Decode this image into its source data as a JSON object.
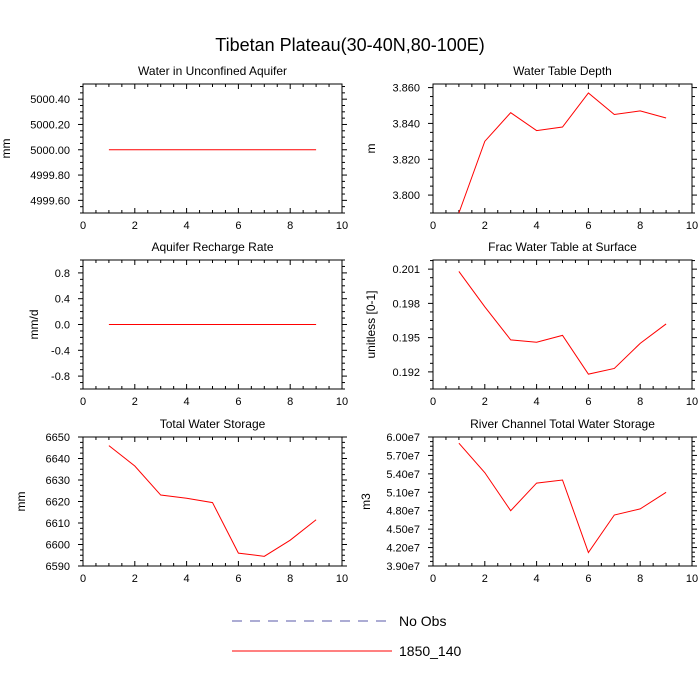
{
  "title": "Tibetan Plateau(30-40N,80-100E)",
  "colors": {
    "obs": "#5a5aaa",
    "model": "#ff0000",
    "axis": "#000000"
  },
  "legend": [
    {
      "label": "No Obs",
      "style": "dashed",
      "color": "#5a5aaa"
    },
    {
      "label": "1850_140",
      "style": "solid",
      "color": "#ff0000"
    }
  ],
  "chart_data": [
    {
      "type": "line",
      "title": "Water in Unconfined Aquifer",
      "ylabel": "mm",
      "xlabel": "",
      "xlim": [
        0,
        10
      ],
      "ylim": [
        4999.5,
        5000.52
      ],
      "xticks": [
        0,
        2,
        4,
        6,
        8,
        10
      ],
      "xtick_labels": [
        "0",
        "2",
        "4",
        "6",
        "8",
        "10"
      ],
      "yticks": [
        4999.6,
        4999.8,
        5000.0,
        5000.2,
        5000.4
      ],
      "ytick_labels": [
        "4999.60",
        "4999.80",
        "5000.00",
        "5000.20",
        "5000.40"
      ],
      "series": [
        {
          "name": "1850_140",
          "x": [
            1,
            2,
            3,
            4,
            5,
            6,
            7,
            8,
            9
          ],
          "values": [
            5000,
            5000,
            5000,
            5000,
            5000,
            5000,
            5000,
            5000,
            5000
          ]
        }
      ]
    },
    {
      "type": "line",
      "title": "Water Table Depth",
      "ylabel": "m",
      "xlabel": "",
      "xlim": [
        0,
        10
      ],
      "ylim": [
        3.79,
        3.862
      ],
      "xticks": [
        0,
        2,
        4,
        6,
        8,
        10
      ],
      "xtick_labels": [
        "0",
        "2",
        "4",
        "6",
        "8",
        "10"
      ],
      "yticks": [
        3.8,
        3.82,
        3.84,
        3.86
      ],
      "ytick_labels": [
        "3.800",
        "3.820",
        "3.840",
        "3.860"
      ],
      "series": [
        {
          "name": "1850_140",
          "x": [
            1,
            2,
            3,
            4,
            5,
            6,
            7,
            8,
            9
          ],
          "values": [
            3.79,
            3.83,
            3.846,
            3.836,
            3.838,
            3.857,
            3.845,
            3.847,
            3.843
          ]
        }
      ]
    },
    {
      "type": "line",
      "title": "Aquifer Recharge Rate",
      "ylabel": "mm/d",
      "xlabel": "",
      "xlim": [
        0,
        10
      ],
      "ylim": [
        -1.0,
        1.0
      ],
      "xticks": [
        0,
        2,
        4,
        6,
        8,
        10
      ],
      "xtick_labels": [
        "0",
        "2",
        "4",
        "6",
        "8",
        "10"
      ],
      "yticks": [
        -0.8,
        -0.4,
        0.0,
        0.4,
        0.8
      ],
      "ytick_labels": [
        "-0.8",
        "-0.4",
        "0.0",
        "0.4",
        "0.8"
      ],
      "series": [
        {
          "name": "1850_140",
          "x": [
            1,
            2,
            3,
            4,
            5,
            6,
            7,
            8,
            9
          ],
          "values": [
            0,
            0,
            0,
            0,
            0,
            0,
            0,
            0,
            0
          ]
        }
      ]
    },
    {
      "type": "line",
      "title": "Frac Water Table at Surface",
      "ylabel": "unitless [0-1]",
      "xlabel": "",
      "xlim": [
        0,
        10
      ],
      "ylim": [
        0.1905,
        0.2018
      ],
      "xticks": [
        0,
        2,
        4,
        6,
        8,
        10
      ],
      "xtick_labels": [
        "0",
        "2",
        "4",
        "6",
        "8",
        "10"
      ],
      "yticks": [
        0.192,
        0.195,
        0.198,
        0.201
      ],
      "ytick_labels": [
        "0.192",
        "0.195",
        "0.198",
        "0.201"
      ],
      "series": [
        {
          "name": "1850_140",
          "x": [
            1,
            2,
            3,
            4,
            5,
            6,
            7,
            8,
            9
          ],
          "values": [
            0.2008,
            0.1977,
            0.1948,
            0.1946,
            0.1952,
            0.1918,
            0.1923,
            0.1945,
            0.1962
          ]
        }
      ]
    },
    {
      "type": "line",
      "title": "Total Water Storage",
      "ylabel": "mm",
      "xlabel": "",
      "xlim": [
        0,
        10
      ],
      "ylim": [
        6590,
        6650
      ],
      "xticks": [
        0,
        2,
        4,
        6,
        8,
        10
      ],
      "xtick_labels": [
        "0",
        "2",
        "4",
        "6",
        "8",
        "10"
      ],
      "yticks": [
        6590,
        6600,
        6610,
        6620,
        6630,
        6640,
        6650
      ],
      "ytick_labels": [
        "6590",
        "6600",
        "6610",
        "6620",
        "6630",
        "6640",
        "6650"
      ],
      "series": [
        {
          "name": "1850_140",
          "x": [
            1,
            2,
            3,
            4,
            5,
            6,
            7,
            8,
            9
          ],
          "values": [
            6646,
            6636.5,
            6623,
            6621.5,
            6619.5,
            6596,
            6594.5,
            6602,
            6611.5
          ]
        }
      ]
    },
    {
      "type": "line",
      "title": "River Channel Total Water Storage",
      "ylabel": "m3",
      "xlabel": "",
      "xlim": [
        0,
        10
      ],
      "ylim": [
        39000000,
        60000000
      ],
      "xticks": [
        0,
        2,
        4,
        6,
        8,
        10
      ],
      "xtick_labels": [
        "0",
        "2",
        "4",
        "6",
        "8",
        "10"
      ],
      "yticks": [
        39000000,
        42000000,
        45000000,
        48000000,
        51000000,
        54000000,
        57000000,
        60000000
      ],
      "ytick_labels": [
        "3.90e7",
        "4.20e7",
        "4.50e7",
        "4.80e7",
        "5.10e7",
        "5.40e7",
        "5.70e7",
        "6.00e7"
      ],
      "series": [
        {
          "name": "1850_140",
          "x": [
            1,
            2,
            3,
            4,
            5,
            6,
            7,
            8,
            9
          ],
          "values": [
            59000000,
            54200000,
            48000000,
            52500000,
            53000000,
            41200000,
            47300000,
            48300000,
            51000000
          ]
        }
      ]
    }
  ]
}
